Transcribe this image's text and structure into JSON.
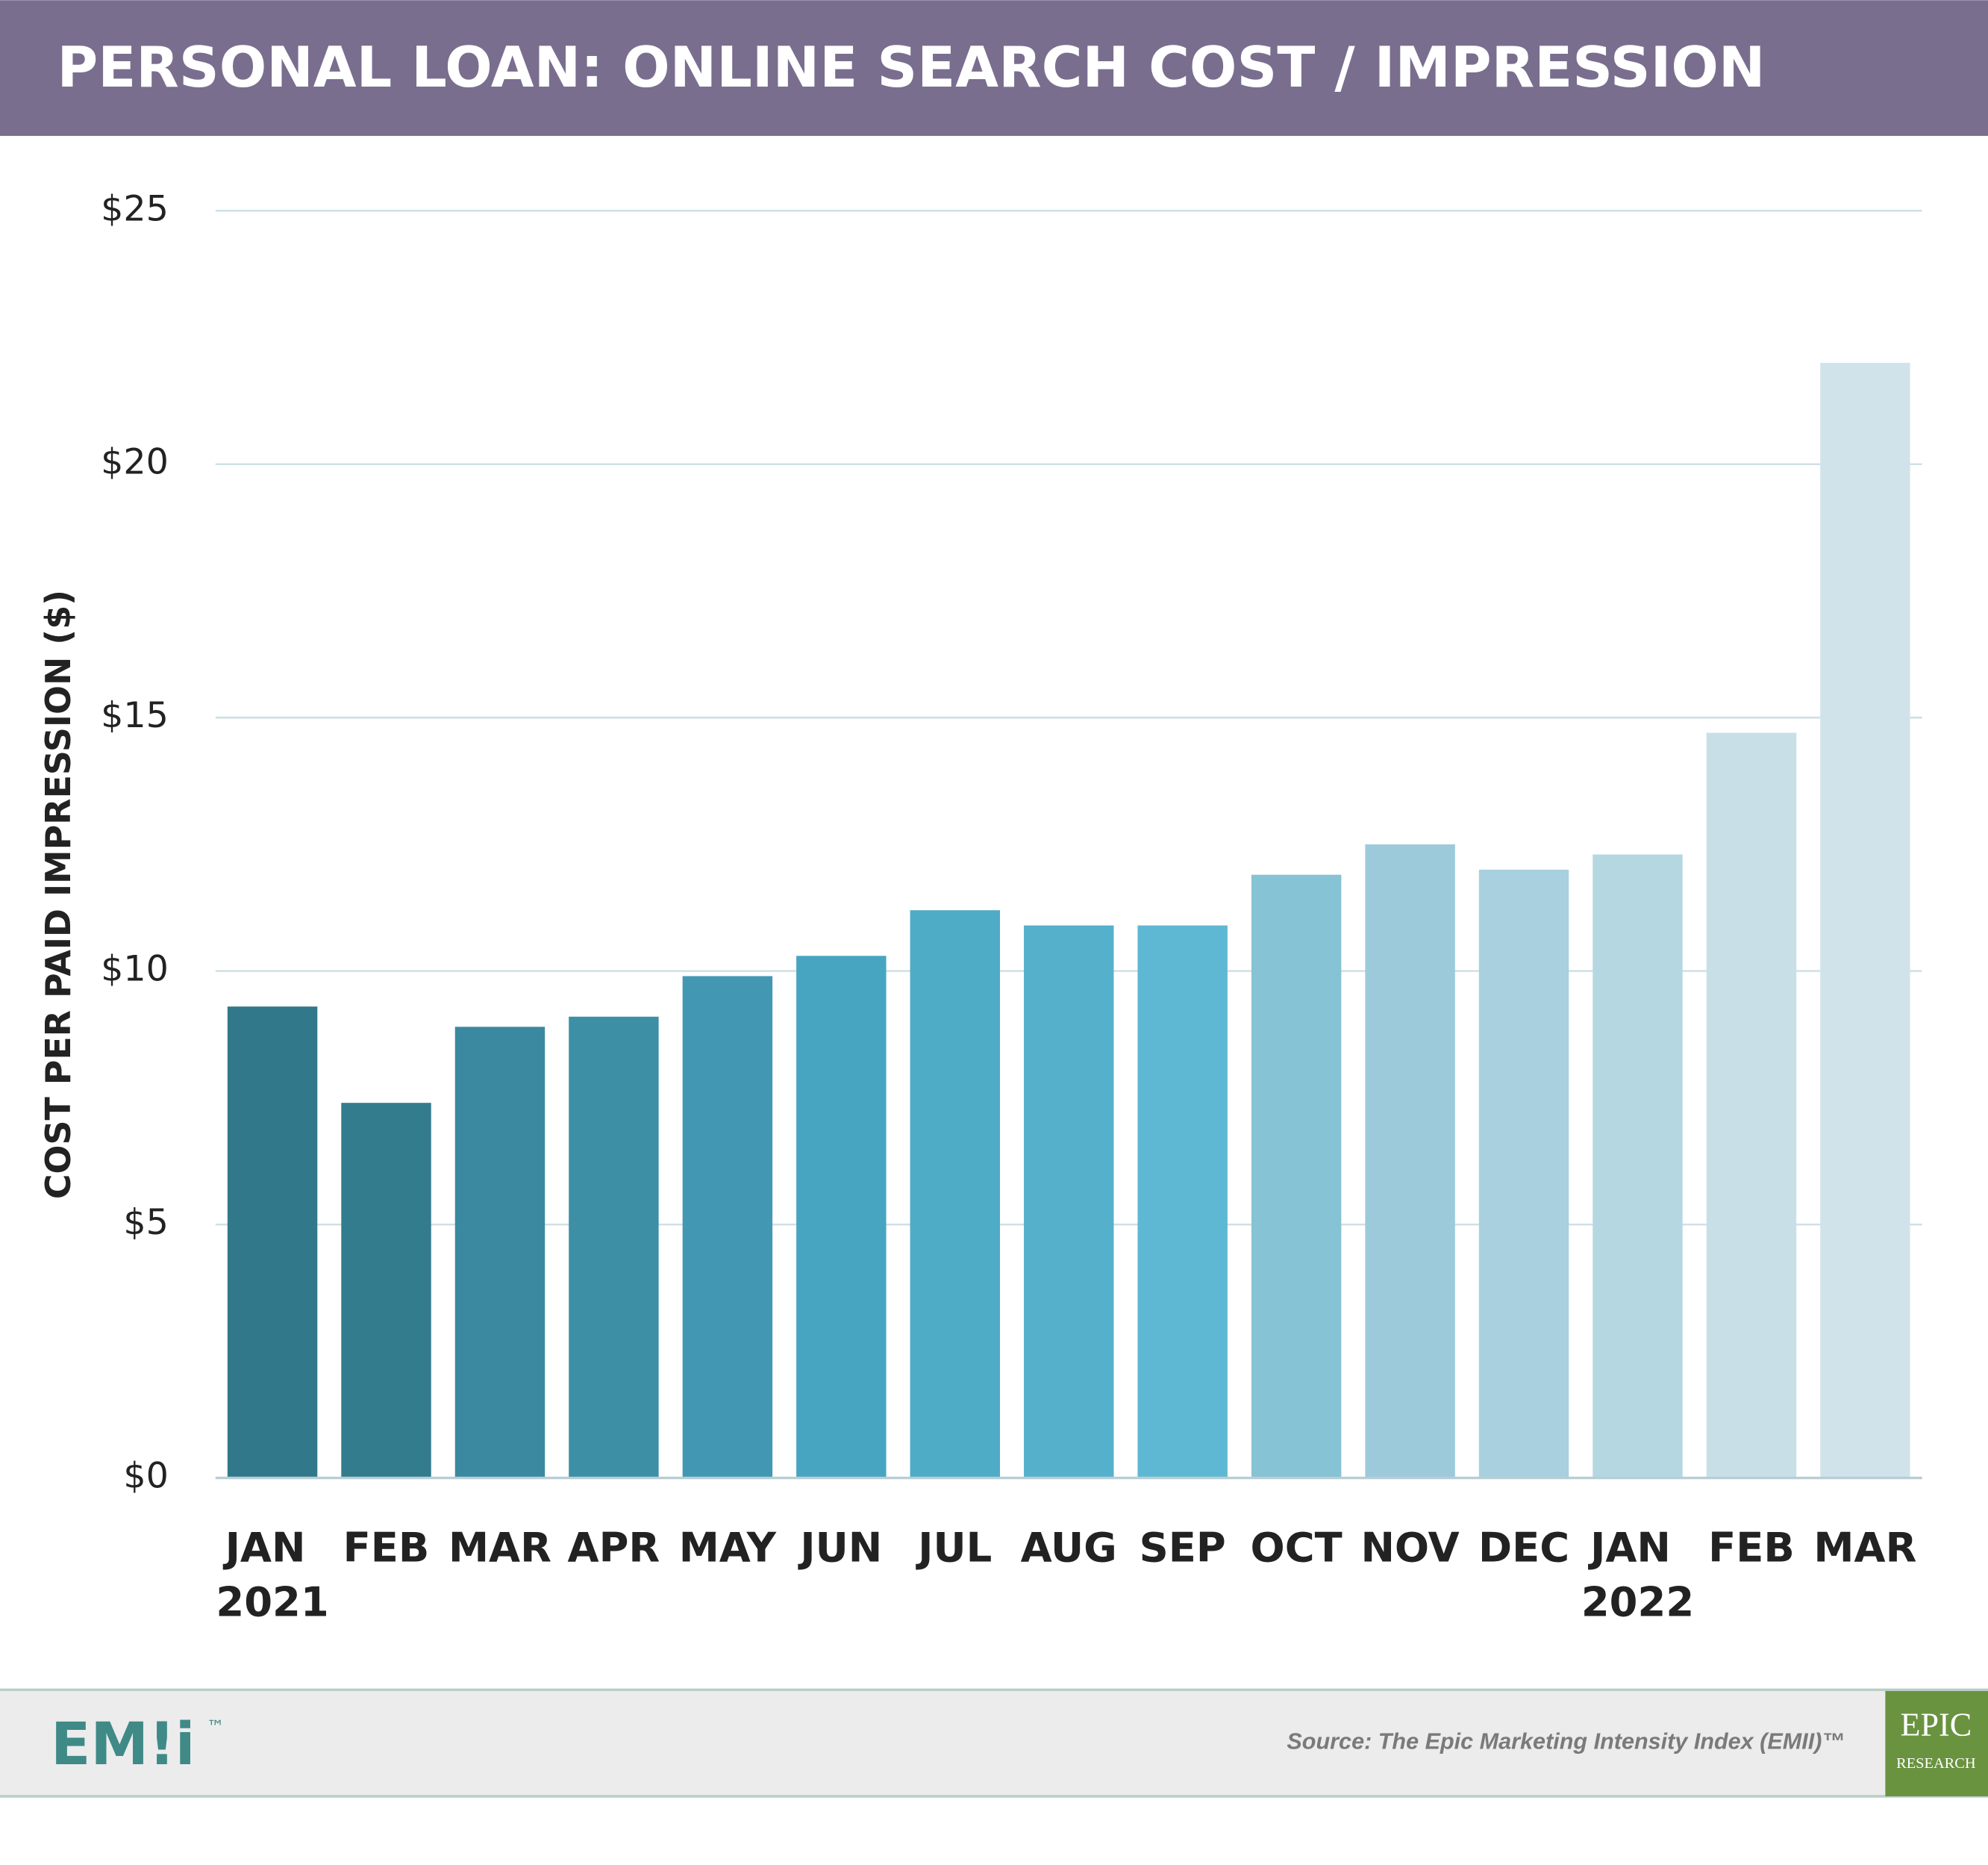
{
  "chart_data": {
    "type": "bar",
    "title": "PERSONAL LOAN: ONLINE SEARCH COST / IMPRESSION",
    "y_label": "COST PER PAID IMPRESSION ($)",
    "categories": [
      "JAN 2021",
      "FEB",
      "MAR",
      "APR",
      "MAY",
      "JUN",
      "JUL",
      "AUG",
      "SEP",
      "OCT",
      "NOV",
      "DEC",
      "JAN 2022",
      "FEB",
      "MAR"
    ],
    "values": [
      9.3,
      7.4,
      8.9,
      9.1,
      9.9,
      10.3,
      11.2,
      10.9,
      10.9,
      11.9,
      12.5,
      12.0,
      12.3,
      14.7,
      22.0
    ],
    "colors": [
      "#31788a",
      "#327c8e",
      "#3a89a0",
      "#3d8fa6",
      "#4298b2",
      "#47a5c1",
      "#4eacc7",
      "#55b0cc",
      "#5fb8d3",
      "#86c3d4",
      "#9ccadb",
      "#a8d0de",
      "#b5d7e2",
      "#c8dfe8",
      "#d1e3ea"
    ],
    "ylim": [
      0,
      25
    ],
    "yticks": [
      {
        "value": 0,
        "label": "$0"
      },
      {
        "value": 5,
        "label": "$5"
      },
      {
        "value": 10,
        "label": "$10"
      },
      {
        "value": 15,
        "label": "$15"
      },
      {
        "value": 20,
        "label": "$20"
      },
      {
        "value": 25,
        "label": "$25"
      }
    ],
    "grid": true,
    "logo": "EM!i",
    "logo_mark": "™",
    "source": "Source: The Epic Marketing Intensity Index (EMII)™",
    "badge": [
      "EPIC",
      "RESEARCH"
    ]
  }
}
